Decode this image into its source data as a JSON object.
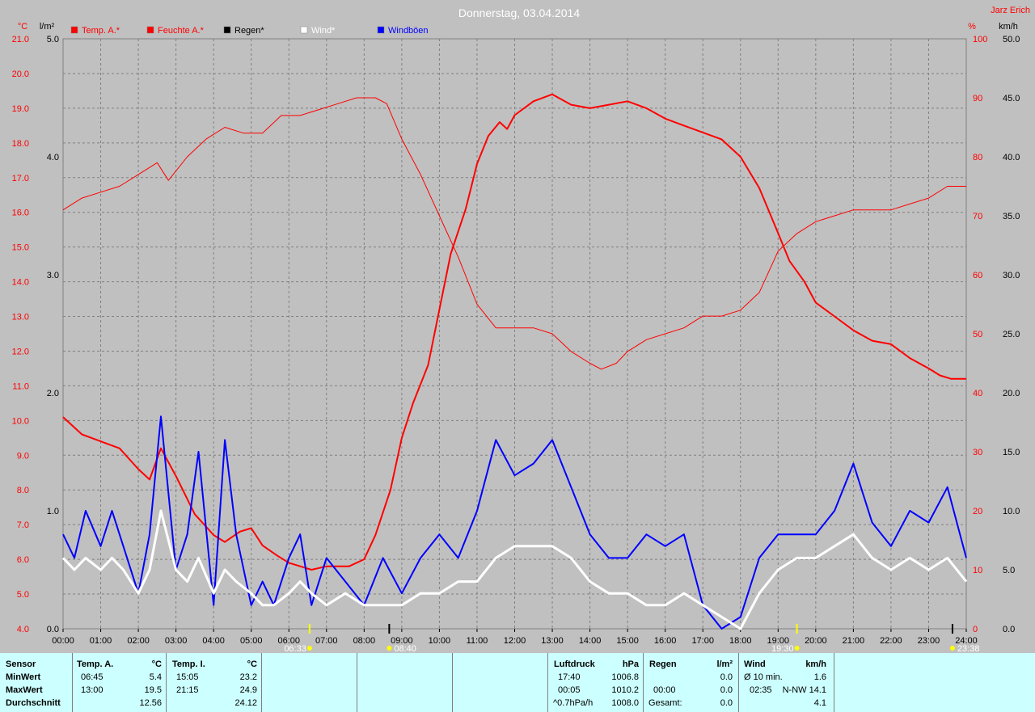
{
  "chart_data": {
    "type": "line",
    "title": "Donnerstag, 03.04.2014",
    "author": "Jarz Erich",
    "legend": [
      "Temp. A.*",
      "Feuchte A.*",
      "Regen*",
      "Wind*",
      "Windböen"
    ],
    "legend_colors": [
      "#ff0000",
      "#ff0000",
      "#000000",
      "#ffffff",
      "#0000ff"
    ],
    "axes": {
      "temp": {
        "unit": "°C",
        "range": [
          4.0,
          21.0
        ],
        "ticks": [
          "21.0",
          "20.0",
          "19.0",
          "18.0",
          "17.0",
          "16.0",
          "15.0",
          "14.0",
          "13.0",
          "12.0",
          "11.0",
          "10.0",
          "9.0",
          "8.0",
          "7.0",
          "6.0",
          "5.0",
          "4.0"
        ]
      },
      "rain": {
        "unit": "l/m²",
        "range": [
          0.0,
          5.0
        ],
        "ticks": [
          "5.0",
          "4.0",
          "3.0",
          "2.0",
          "1.0",
          "0.0"
        ]
      },
      "humidity": {
        "unit": "%",
        "range": [
          0,
          100
        ],
        "ticks": [
          "100",
          "90",
          "80",
          "70",
          "60",
          "50",
          "40",
          "30",
          "20",
          "10",
          "0"
        ]
      },
      "wind": {
        "unit": "km/h",
        "range": [
          0.0,
          50.0
        ],
        "ticks": [
          "50.0",
          "45.0",
          "40.0",
          "35.0",
          "30.0",
          "25.0",
          "20.0",
          "15.0",
          "10.0",
          "5.0",
          "0.0"
        ]
      }
    },
    "x_ticks": [
      "00:00",
      "01:00",
      "02:00",
      "03:00",
      "04:00",
      "05:00",
      "06:00",
      "07:00",
      "08:00",
      "09:00",
      "10:00",
      "11:00",
      "12:00",
      "13:00",
      "14:00",
      "15:00",
      "16:00",
      "17:00",
      "18:00",
      "19:00",
      "20:00",
      "21:00",
      "22:00",
      "23:00",
      "24:00"
    ],
    "sun_markers": {
      "sunrise": "06:33",
      "noon": "08:40",
      "sunset": "19:30",
      "moon": "23:38"
    },
    "series": [
      {
        "name": "Temp. A.*",
        "axis": "temp",
        "x": [
          0,
          0.5,
          1,
          1.5,
          2,
          2.3,
          2.6,
          3,
          3.5,
          4,
          4.3,
          4.7,
          5,
          5.3,
          5.7,
          6,
          6.3,
          6.6,
          7,
          7.3,
          7.6,
          8,
          8.3,
          8.7,
          9,
          9.3,
          9.7,
          10,
          10.3,
          10.7,
          11,
          11.3,
          11.6,
          11.8,
          12,
          12.5,
          13,
          13.5,
          14,
          14.5,
          15,
          15.5,
          16,
          16.5,
          17,
          17.5,
          18,
          18.5,
          19,
          19.3,
          19.7,
          20,
          20.5,
          21,
          21.5,
          22,
          22.5,
          23,
          23.3,
          23.6,
          24
        ],
        "values": [
          10.1,
          9.6,
          9.4,
          9.2,
          8.6,
          8.3,
          9.2,
          8.4,
          7.3,
          6.7,
          6.5,
          6.8,
          6.9,
          6.4,
          6.1,
          5.9,
          5.8,
          5.7,
          5.8,
          5.8,
          5.8,
          6.0,
          6.7,
          8.0,
          9.5,
          10.5,
          11.6,
          13.2,
          14.8,
          16.1,
          17.4,
          18.2,
          18.6,
          18.4,
          18.8,
          19.2,
          19.4,
          19.1,
          19.0,
          19.1,
          19.2,
          19.0,
          18.7,
          18.5,
          18.3,
          18.1,
          17.6,
          16.7,
          15.4,
          14.6,
          14.0,
          13.4,
          13.0,
          12.6,
          12.3,
          12.2,
          11.8,
          11.5,
          11.3,
          11.2,
          11.2
        ]
      },
      {
        "name": "Feuchte A.*",
        "axis": "humidity",
        "x": [
          0,
          0.5,
          1,
          1.5,
          2,
          2.5,
          2.8,
          3.3,
          3.8,
          4.3,
          4.8,
          5.3,
          5.8,
          6.3,
          6.8,
          7.3,
          7.8,
          8.3,
          8.6,
          9,
          9.5,
          10,
          10.5,
          11,
          11.5,
          12,
          12.5,
          13,
          13.5,
          14,
          14.3,
          14.7,
          15,
          15.5,
          16,
          16.5,
          17,
          17.5,
          18,
          18.5,
          19,
          19.5,
          20,
          20.5,
          21,
          21.5,
          22,
          22.5,
          23,
          23.5,
          24
        ],
        "values": [
          71,
          73,
          74,
          75,
          77,
          79,
          76,
          80,
          83,
          85,
          84,
          84,
          87,
          87,
          88,
          89,
          90,
          90,
          89,
          83,
          77,
          70,
          63,
          55,
          51,
          51,
          51,
          50,
          47,
          45,
          44,
          45,
          47,
          49,
          50,
          51,
          53,
          53,
          54,
          57,
          64,
          67,
          69,
          70,
          71,
          71,
          71,
          72,
          73,
          75,
          75
        ]
      },
      {
        "name": "Wind*",
        "axis": "wind",
        "x": [
          0,
          0.3,
          0.6,
          1,
          1.3,
          1.6,
          2,
          2.3,
          2.6,
          3,
          3.3,
          3.6,
          4,
          4.3,
          4.6,
          5,
          5.3,
          5.6,
          6,
          6.3,
          6.6,
          7,
          7.5,
          8,
          8.5,
          9,
          9.5,
          10,
          10.5,
          11,
          11.5,
          12,
          12.5,
          13,
          13.5,
          14,
          14.5,
          15,
          15.5,
          16,
          16.5,
          17,
          17.5,
          18,
          18.5,
          19,
          19.5,
          20,
          20.5,
          21,
          21.5,
          22,
          22.5,
          23,
          23.5,
          24
        ],
        "values": [
          6,
          5,
          6,
          5,
          6,
          5,
          3,
          5,
          10,
          5,
          4,
          6,
          3,
          5,
          4,
          3,
          2,
          2,
          3,
          4,
          3,
          2,
          3,
          2,
          2,
          2,
          3,
          3,
          4,
          4,
          6,
          7,
          7,
          7,
          6,
          4,
          3,
          3,
          2,
          2,
          3,
          2,
          1,
          0,
          3,
          5,
          6,
          6,
          7,
          8,
          6,
          5,
          6,
          5,
          6,
          4
        ]
      },
      {
        "name": "Windböen",
        "axis": "wind",
        "x": [
          0,
          0.3,
          0.6,
          1,
          1.3,
          1.6,
          2,
          2.3,
          2.6,
          3,
          3.3,
          3.6,
          4,
          4.3,
          4.6,
          5,
          5.3,
          5.6,
          6,
          6.3,
          6.6,
          7,
          7.5,
          8,
          8.5,
          9,
          9.5,
          10,
          10.5,
          11,
          11.5,
          12,
          12.5,
          13,
          13.5,
          14,
          14.5,
          15,
          15.5,
          16,
          16.5,
          17,
          17.5,
          18,
          18.5,
          19,
          19.5,
          20,
          20.5,
          21,
          21.5,
          22,
          22.5,
          23,
          23.5,
          24
        ],
        "values": [
          8,
          6,
          10,
          7,
          10,
          7,
          3,
          8,
          18,
          5,
          8,
          15,
          2,
          16,
          8,
          2,
          4,
          2,
          6,
          8,
          2,
          6,
          4,
          2,
          6,
          3,
          6,
          8,
          6,
          10,
          16,
          13,
          14,
          16,
          12,
          8,
          6,
          6,
          8,
          7,
          8,
          2,
          0,
          1,
          6,
          8,
          8,
          8,
          10,
          14,
          9,
          7,
          10,
          9,
          12,
          6
        ]
      }
    ]
  },
  "stats": {
    "header": {
      "sensor": "Sensor",
      "temp_a": "Temp. A.",
      "temp_a_unit": "°C",
      "temp_i": "Temp. I.",
      "temp_i_unit": "°C",
      "pressure": "Luftdruck",
      "pressure_unit": "hPa",
      "rain": "Regen",
      "rain_unit": "l/m²",
      "wind": "Wind",
      "wind_unit": "km/h"
    },
    "rows": {
      "min": "MinWert",
      "max": "MaxWert",
      "avg": "Durchschnitt"
    },
    "temp_a": {
      "min_time": "06:45",
      "min_val": "5.4",
      "max_time": "13:00",
      "max_val": "19.5",
      "avg": "12.56"
    },
    "temp_i": {
      "min_time": "15:05",
      "min_val": "23.2",
      "max_time": "21:15",
      "max_val": "24.9",
      "avg": "24.12"
    },
    "pressure": {
      "r1_time": "17:40",
      "r1_val": "1006.8",
      "r2_time": "00:05",
      "r2_val": "1010.2",
      "r3_label": "^0.7hPa/h",
      "r3_val": "1008.0"
    },
    "rain": {
      "r2_time": "00:00",
      "r1_val": "0.0",
      "r2_val": "0.0",
      "r3_label": "Gesamt:",
      "r3_val": "0.0"
    },
    "wind": {
      "r1_label": "Ø 10 min.",
      "r1_val": "1.6",
      "r2_time": "02:35",
      "r2_val": "N-NW 14.1",
      "r3_val": "4.1"
    }
  }
}
